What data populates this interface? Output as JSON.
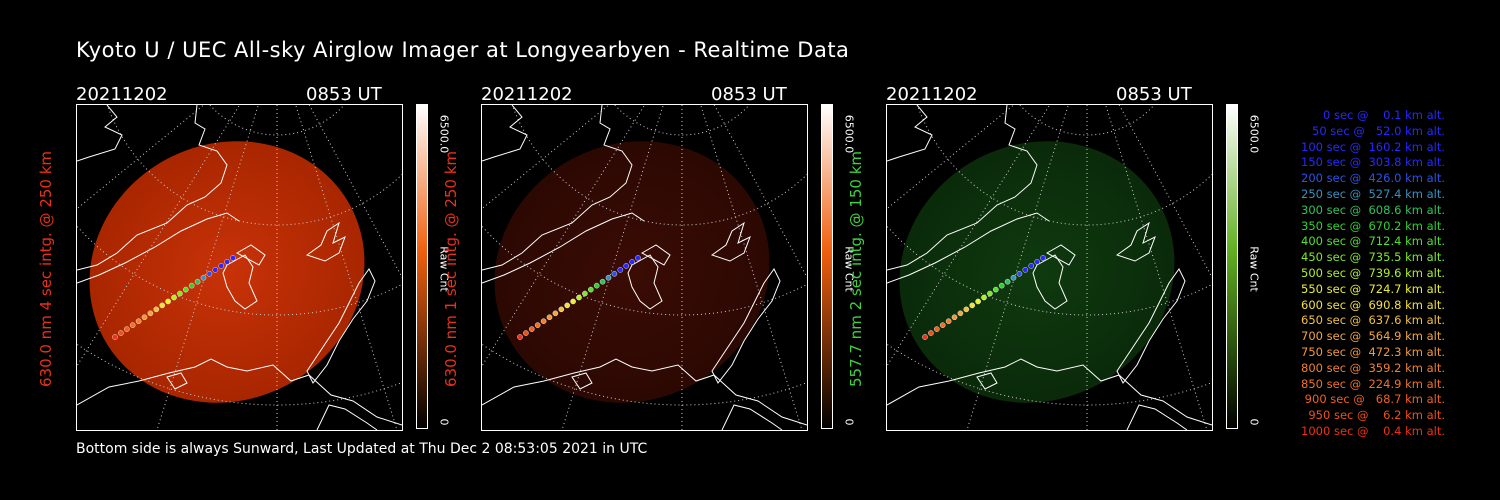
{
  "title": "Kyoto U / UEC All-sky Airglow Imager at Longyearbyen - Realtime Data",
  "panels": [
    {
      "date": "20211202",
      "time": "0853 UT",
      "label": "630.0 nm 4 sec intg. @ 250 km",
      "label_color": "#e8301a",
      "cbar_max": "6500.0",
      "cbar_unit": "Raw Cnt",
      "cbar_min": "0",
      "glow": "#c83208",
      "glow_edge": "#a82600",
      "glow_opacity": 1.0,
      "cbar_top": "#ffffff",
      "cbar_mid": "#f06010",
      "cbar_bottom": "#000000"
    },
    {
      "date": "20211202",
      "time": "0853 UT",
      "label": "630.0 nm 1 sec intg. @ 250 km",
      "label_color": "#e8301a",
      "cbar_max": "6500.0",
      "cbar_unit": "Raw Cnt",
      "cbar_min": "0",
      "glow": "#3a0c04",
      "glow_edge": "#2c0803",
      "glow_opacity": 1.0,
      "cbar_top": "#ffffff",
      "cbar_mid": "#f06010",
      "cbar_bottom": "#000000"
    },
    {
      "date": "20211202",
      "time": "0853 UT",
      "label": "557.7 nm 2 sec intg. @ 150 km",
      "label_color": "#40d040",
      "cbar_max": "6500.0",
      "cbar_unit": "Raw Cnt",
      "cbar_min": "0",
      "glow": "#0f3a0f",
      "glow_edge": "#0a2a0a",
      "glow_opacity": 1.0,
      "cbar_top": "#ffffff",
      "cbar_mid": "#60b020",
      "cbar_bottom": "#000000"
    }
  ],
  "footer": "Bottom side is always Sunward, Last Updated at Thu Dec  2 08:53:05 2021 in UTC",
  "legend": [
    {
      "text": "   0 sec @    0.1 km alt.",
      "color": "#2828ff"
    },
    {
      "text": "  50 sec @   52.0 km alt.",
      "color": "#2828ff"
    },
    {
      "text": " 100 sec @  160.2 km alt.",
      "color": "#2828ff"
    },
    {
      "text": " 150 sec @  303.8 km alt.",
      "color": "#2828ff"
    },
    {
      "text": " 200 sec @  426.0 km alt.",
      "color": "#3050e8"
    },
    {
      "text": " 250 sec @  527.4 km alt.",
      "color": "#3890c0"
    },
    {
      "text": " 300 sec @  608.6 km alt.",
      "color": "#30c060"
    },
    {
      "text": " 350 sec @  670.2 km alt.",
      "color": "#30d030"
    },
    {
      "text": " 400 sec @  712.4 km alt.",
      "color": "#50e030"
    },
    {
      "text": " 450 sec @  735.5 km alt.",
      "color": "#80e828"
    },
    {
      "text": " 500 sec @  739.6 km alt.",
      "color": "#b0f028"
    },
    {
      "text": " 550 sec @  724.7 km alt.",
      "color": "#e8f030"
    },
    {
      "text": " 600 sec @  690.8 km alt.",
      "color": "#f0e040"
    },
    {
      "text": " 650 sec @  637.6 km alt.",
      "color": "#f0c040"
    },
    {
      "text": " 700 sec @  564.9 km alt.",
      "color": "#f0a840"
    },
    {
      "text": " 750 sec @  472.3 km alt.",
      "color": "#f09838"
    },
    {
      "text": " 800 sec @  359.2 km alt.",
      "color": "#f08030"
    },
    {
      "text": " 850 sec @  224.9 km alt.",
      "color": "#f07028"
    },
    {
      "text": " 900 sec @   68.7 km alt.",
      "color": "#f06020"
    },
    {
      "text": " 950 sec @    6.2 km alt.",
      "color": "#f05018"
    },
    {
      "text": "1000 sec @    0.4 km alt.",
      "color": "#f03018"
    }
  ]
}
